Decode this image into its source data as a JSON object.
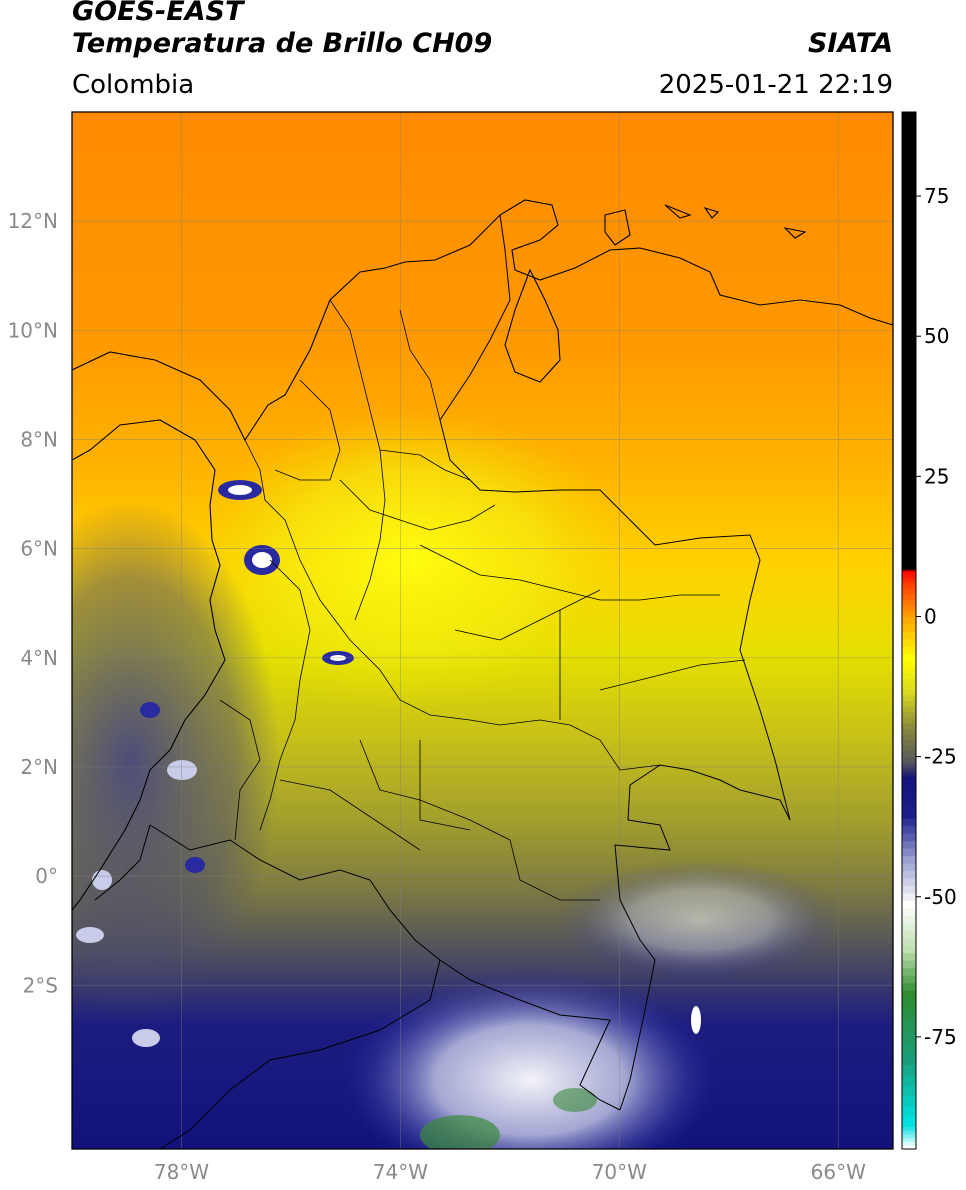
{
  "header": {
    "title_line1": "GOES-EAST",
    "title_line2": "Temperatura de Brillo CH09",
    "agency": "SIATA",
    "region": "Colombia",
    "timestamp": "2025-01-21 22:19"
  },
  "map": {
    "lon_range": [
      -80,
      -65
    ],
    "lat_range": [
      -5,
      14
    ],
    "lat_ticks": [
      {
        "value": 12,
        "label": "12°N"
      },
      {
        "value": 10,
        "label": "10°N"
      },
      {
        "value": 8,
        "label": "8°N"
      },
      {
        "value": 6,
        "label": "6°N"
      },
      {
        "value": 4,
        "label": "4°N"
      },
      {
        "value": 2,
        "label": "2°N"
      },
      {
        "value": 0,
        "label": "0°"
      },
      {
        "value": -2,
        "label": "2°S"
      }
    ],
    "lon_ticks": [
      {
        "value": -78,
        "label": "78°W"
      },
      {
        "value": -74,
        "label": "74°W"
      },
      {
        "value": -70,
        "label": "70°W"
      },
      {
        "value": -66,
        "label": "66°W"
      }
    ],
    "gridlines": true
  },
  "colorbar": {
    "range": [
      -95,
      90
    ],
    "ticks": [
      {
        "value": 75,
        "label": "75"
      },
      {
        "value": 50,
        "label": "50"
      },
      {
        "value": 25,
        "label": "25"
      },
      {
        "value": 0,
        "label": "0"
      },
      {
        "value": -25,
        "label": "-25"
      },
      {
        "value": -50,
        "label": "-50"
      },
      {
        "value": -75,
        "label": "-75"
      }
    ],
    "stops": [
      {
        "value": -95,
        "color": "#ffffff"
      },
      {
        "value": -91,
        "color": "#00e0e0"
      },
      {
        "value": -80,
        "color": "#1a9e7a"
      },
      {
        "value": -68,
        "color": "#2e8b2e"
      },
      {
        "value": -60,
        "color": "#bfe0b0"
      },
      {
        "value": -52,
        "color": "#ffffff"
      },
      {
        "value": -44,
        "color": "#9aa0d0"
      },
      {
        "value": -36,
        "color": "#1c1c8c"
      },
      {
        "value": -29,
        "color": "#14147a"
      },
      {
        "value": -26,
        "color": "#5a5a5a"
      },
      {
        "value": -20,
        "color": "#8c8c3c"
      },
      {
        "value": -14,
        "color": "#d8d820"
      },
      {
        "value": -8,
        "color": "#ffff00"
      },
      {
        "value": 0,
        "color": "#ff9900"
      },
      {
        "value": 6,
        "color": "#ff3300"
      },
      {
        "value": 8,
        "color": "#ff0000"
      },
      {
        "value": 8.5,
        "color": "#000000"
      },
      {
        "value": 90,
        "color": "#000000"
      }
    ]
  }
}
